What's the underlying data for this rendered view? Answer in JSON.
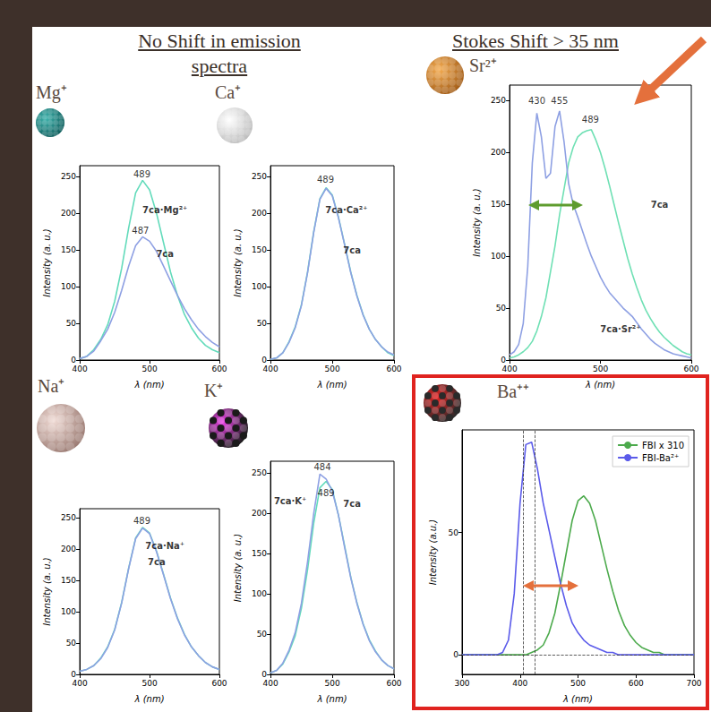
{
  "header": {
    "left": "No Shift in emission spectra",
    "right": "Stokes Shift > 35 nm"
  },
  "chart_data": [
    {
      "type": "line",
      "title": "Mg⁺",
      "x_label": "λ (nm)",
      "y_label": "Intensity (a. u.)",
      "x": [
        400,
        410,
        420,
        430,
        440,
        450,
        460,
        470,
        480,
        490,
        500,
        510,
        520,
        530,
        540,
        550,
        560,
        570,
        580,
        590,
        600
      ],
      "xlim": [
        400,
        600
      ],
      "xticks": [
        400,
        500,
        600
      ],
      "ylim": [
        0,
        265
      ],
      "yticks": [
        0,
        50,
        100,
        150,
        200,
        250
      ],
      "series": [
        {
          "name": "7ca·Mg²⁺",
          "color": "#63dbbb",
          "label_at": [
            522,
            205
          ],
          "values": [
            2,
            5,
            14,
            28,
            48,
            80,
            125,
            180,
            228,
            245,
            232,
            200,
            160,
            120,
            88,
            62,
            44,
            30,
            20,
            14,
            10
          ]
        },
        {
          "name": "7ca",
          "color": "#8ea0e3",
          "label_at": [
            522,
            145
          ],
          "values": [
            2,
            5,
            12,
            26,
            42,
            65,
            95,
            128,
            156,
            168,
            162,
            148,
            128,
            108,
            88,
            70,
            55,
            42,
            32,
            24,
            18
          ]
        }
      ],
      "annotations": [
        {
          "text": "489",
          "x": 489,
          "y": 254
        },
        {
          "text": "487",
          "x": 487,
          "y": 177
        }
      ]
    },
    {
      "type": "line",
      "title": "Ca⁺",
      "x_label": "λ (nm)",
      "y_label": "Intensity (a. u.)",
      "x": [
        400,
        410,
        420,
        430,
        440,
        450,
        460,
        470,
        480,
        490,
        500,
        510,
        520,
        530,
        540,
        550,
        560,
        570,
        580,
        590,
        600
      ],
      "xlim": [
        400,
        600
      ],
      "xticks": [
        400,
        500,
        600
      ],
      "ylim": [
        0,
        265
      ],
      "yticks": [
        0,
        50,
        100,
        150,
        200,
        250
      ],
      "series": [
        {
          "name": "7ca·Ca²⁺",
          "color": "#63dbbb",
          "label_at": [
            523,
            205
          ],
          "values": [
            1,
            3,
            10,
            25,
            45,
            75,
            120,
            175,
            220,
            235,
            225,
            195,
            158,
            120,
            88,
            62,
            42,
            28,
            18,
            10,
            6
          ]
        },
        {
          "name": "7ca",
          "color": "#8ea0e3",
          "label_at": [
            532,
            150
          ],
          "values": [
            1,
            3,
            10,
            24,
            44,
            74,
            119,
            174,
            219,
            234,
            224,
            194,
            157,
            119,
            87,
            61,
            42,
            28,
            18,
            11,
            7
          ]
        }
      ],
      "annotations": [
        {
          "text": "489",
          "x": 489,
          "y": 246
        }
      ]
    },
    {
      "type": "line",
      "title": "Sr²⁺",
      "x_label": "λ (nm)",
      "y_label": "Intensity (a. u.)",
      "x": [
        400,
        405,
        410,
        415,
        420,
        425,
        430,
        435,
        440,
        445,
        450,
        455,
        460,
        465,
        470,
        475,
        480,
        485,
        490,
        495,
        500,
        505,
        510,
        515,
        520,
        525,
        530,
        535,
        540,
        545,
        550,
        555,
        560,
        565,
        570,
        575,
        580,
        585,
        590,
        595,
        600
      ],
      "xlim": [
        400,
        600
      ],
      "xticks": [
        400,
        500,
        600
      ],
      "ylim": [
        0,
        265
      ],
      "yticks": [
        0,
        50,
        100,
        150,
        200,
        250
      ],
      "series": [
        {
          "name": "7ca",
          "color": "#6fe0b4",
          "label_at": [
            565,
            150
          ],
          "values": [
            2,
            3,
            5,
            8,
            12,
            18,
            28,
            42,
            60,
            85,
            110,
            140,
            165,
            190,
            205,
            215,
            219,
            221,
            222,
            212,
            200,
            185,
            168,
            150,
            132,
            115,
            98,
            83,
            70,
            58,
            48,
            40,
            33,
            27,
            22,
            18,
            14,
            11,
            8,
            6,
            5
          ]
        },
        {
          "name": "7ca·Sr²⁺",
          "color": "#8ea0e3",
          "label_at": [
            522,
            30
          ],
          "values": [
            5,
            8,
            15,
            35,
            90,
            190,
            238,
            215,
            175,
            180,
            225,
            240,
            210,
            170,
            150,
            138,
            125,
            112,
            100,
            90,
            80,
            72,
            65,
            60,
            55,
            50,
            46,
            42,
            36,
            30,
            25,
            20,
            16,
            13,
            10,
            8,
            6,
            5,
            4,
            3,
            2
          ]
        }
      ],
      "annotations": [
        {
          "text": "430",
          "x": 430,
          "y": 250
        },
        {
          "text": "455",
          "x": 455,
          "y": 250
        },
        {
          "text": "489",
          "x": 489,
          "y": 232
        }
      ]
    },
    {
      "type": "line",
      "title": "Na⁺",
      "x_label": "λ (nm)",
      "y_label": "Intensity (a. u.)",
      "x": [
        400,
        410,
        420,
        430,
        440,
        450,
        460,
        470,
        480,
        490,
        500,
        510,
        520,
        530,
        540,
        550,
        560,
        570,
        580,
        590,
        600
      ],
      "xlim": [
        400,
        600
      ],
      "xticks": [
        400,
        500,
        600
      ],
      "ylim": [
        0,
        265
      ],
      "yticks": [
        0,
        50,
        100,
        150,
        200,
        250
      ],
      "series": [
        {
          "name": "7ca·Na⁺",
          "color": "#63dbbb",
          "label_at": [
            522,
            205
          ],
          "values": [
            5,
            8,
            14,
            26,
            44,
            72,
            115,
            170,
            218,
            235,
            226,
            197,
            160,
            122,
            90,
            64,
            44,
            30,
            19,
            12,
            8
          ]
        },
        {
          "name": "7ca",
          "color": "#8ea0e3",
          "label_at": [
            510,
            180
          ],
          "values": [
            5,
            8,
            14,
            25,
            43,
            71,
            114,
            169,
            217,
            234,
            225,
            196,
            159,
            121,
            89,
            63,
            44,
            30,
            19,
            12,
            8
          ]
        }
      ],
      "annotations": [
        {
          "text": "489",
          "x": 489,
          "y": 246
        }
      ]
    },
    {
      "type": "line",
      "title": "K⁺",
      "x_label": "λ (nm)",
      "y_label": "Intensity (a. u.)",
      "x": [
        400,
        410,
        420,
        430,
        440,
        450,
        460,
        470,
        480,
        490,
        500,
        510,
        520,
        530,
        540,
        550,
        560,
        570,
        580,
        590,
        600
      ],
      "xlim": [
        400,
        600
      ],
      "xticks": [
        400,
        500,
        600
      ],
      "ylim": [
        0,
        265
      ],
      "yticks": [
        0,
        50,
        100,
        150,
        200,
        250
      ],
      "series": [
        {
          "name": "7ca",
          "color": "#63dbbb",
          "label_at": [
            532,
            212
          ],
          "values": [
            2,
            5,
            13,
            28,
            48,
            82,
            130,
            188,
            232,
            240,
            230,
            198,
            160,
            121,
            89,
            63,
            43,
            29,
            18,
            11,
            7
          ]
        },
        {
          "name": "7ca·K⁺",
          "color": "#8ea0e3",
          "label_at": [
            432,
            215
          ],
          "values": [
            2,
            5,
            14,
            30,
            52,
            88,
            140,
            200,
            249,
            243,
            228,
            198,
            158,
            120,
            88,
            62,
            42,
            28,
            18,
            11,
            7
          ]
        }
      ],
      "annotations": [
        {
          "text": "484",
          "x": 484,
          "y": 258
        },
        {
          "text": "489",
          "x": 490,
          "y": 226
        }
      ]
    },
    {
      "type": "line",
      "title": "Ba⁺⁺",
      "x_label": "λ (nm)",
      "y_label": "Intensity (a.u.)",
      "x": [
        300,
        310,
        320,
        330,
        340,
        350,
        360,
        370,
        380,
        390,
        400,
        410,
        420,
        430,
        440,
        450,
        460,
        470,
        480,
        490,
        500,
        510,
        520,
        530,
        540,
        550,
        560,
        570,
        580,
        590,
        600,
        610,
        620,
        630,
        640,
        650,
        660,
        670,
        680,
        690,
        700
      ],
      "xlim": [
        300,
        700
      ],
      "xticks": [
        300,
        400,
        500,
        600,
        700
      ],
      "ylim": [
        -8,
        92
      ],
      "yticks": [
        0,
        50
      ],
      "legend": "upper right",
      "vlines": [
        405,
        425
      ],
      "hlines": [
        0
      ],
      "series": [
        {
          "name": "FBI x 310",
          "color": "#4caa4c",
          "values": [
            0,
            0,
            0,
            0,
            0,
            0,
            0,
            0,
            0,
            0,
            0,
            0,
            1,
            2,
            4,
            9,
            17,
            29,
            42,
            55,
            63,
            65,
            62,
            55,
            45,
            35,
            26,
            18,
            12,
            8,
            5,
            3,
            2,
            1,
            1,
            0,
            0,
            0,
            0,
            0,
            0
          ]
        },
        {
          "name": "FBI-Ba²⁺",
          "color": "#5b5bea",
          "values": [
            0,
            0,
            0,
            0,
            0,
            0,
            0,
            1,
            6,
            25,
            62,
            86,
            87,
            76,
            62,
            51,
            40,
            29,
            20,
            13,
            9,
            6,
            4,
            3,
            2,
            1,
            1,
            0,
            0,
            0,
            0,
            0,
            0,
            0,
            0,
            0,
            0,
            0,
            0,
            0,
            0
          ]
        }
      ]
    }
  ]
}
